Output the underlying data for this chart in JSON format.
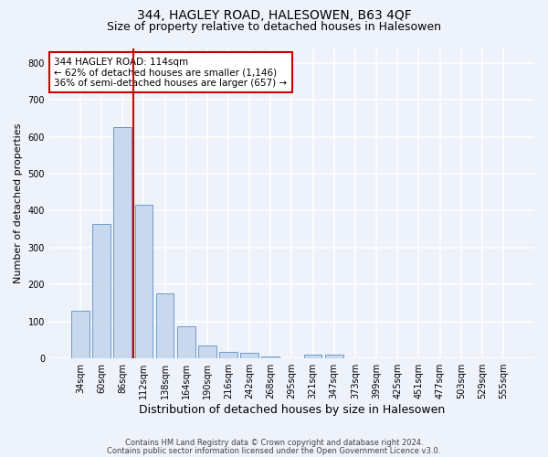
{
  "title1": "344, HAGLEY ROAD, HALESOWEN, B63 4QF",
  "title2": "Size of property relative to detached houses in Halesowen",
  "xlabel": "Distribution of detached houses by size in Halesowen",
  "ylabel": "Number of detached properties",
  "categories": [
    "34sqm",
    "60sqm",
    "86sqm",
    "112sqm",
    "138sqm",
    "164sqm",
    "190sqm",
    "216sqm",
    "242sqm",
    "268sqm",
    "295sqm",
    "321sqm",
    "347sqm",
    "373sqm",
    "399sqm",
    "425sqm",
    "451sqm",
    "477sqm",
    "503sqm",
    "529sqm",
    "555sqm"
  ],
  "values": [
    128,
    365,
    625,
    415,
    175,
    88,
    35,
    18,
    15,
    5,
    0,
    10,
    10,
    0,
    0,
    0,
    0,
    0,
    0,
    0,
    0
  ],
  "bar_color": "#c8d8ee",
  "bar_edge_color": "#6090c0",
  "vline_color": "#cc0000",
  "vline_x_idx": 2.5,
  "annotation_text": "344 HAGLEY ROAD: 114sqm\n← 62% of detached houses are smaller (1,146)\n36% of semi-detached houses are larger (657) →",
  "annotation_box_color": "#ffffff",
  "annotation_box_edge": "#cc0000",
  "ylim": [
    0,
    840
  ],
  "yticks": [
    0,
    100,
    200,
    300,
    400,
    500,
    600,
    700,
    800
  ],
  "footer1": "Contains HM Land Registry data © Crown copyright and database right 2024.",
  "footer2": "Contains public sector information licensed under the Open Government Licence v3.0.",
  "bg_color": "#eef2fa",
  "grid_color": "#ffffff",
  "title1_fontsize": 10,
  "title2_fontsize": 9,
  "ylabel_fontsize": 8,
  "xlabel_fontsize": 9,
  "tick_fontsize": 7,
  "annot_fontsize": 7.5,
  "footer_fontsize": 6
}
